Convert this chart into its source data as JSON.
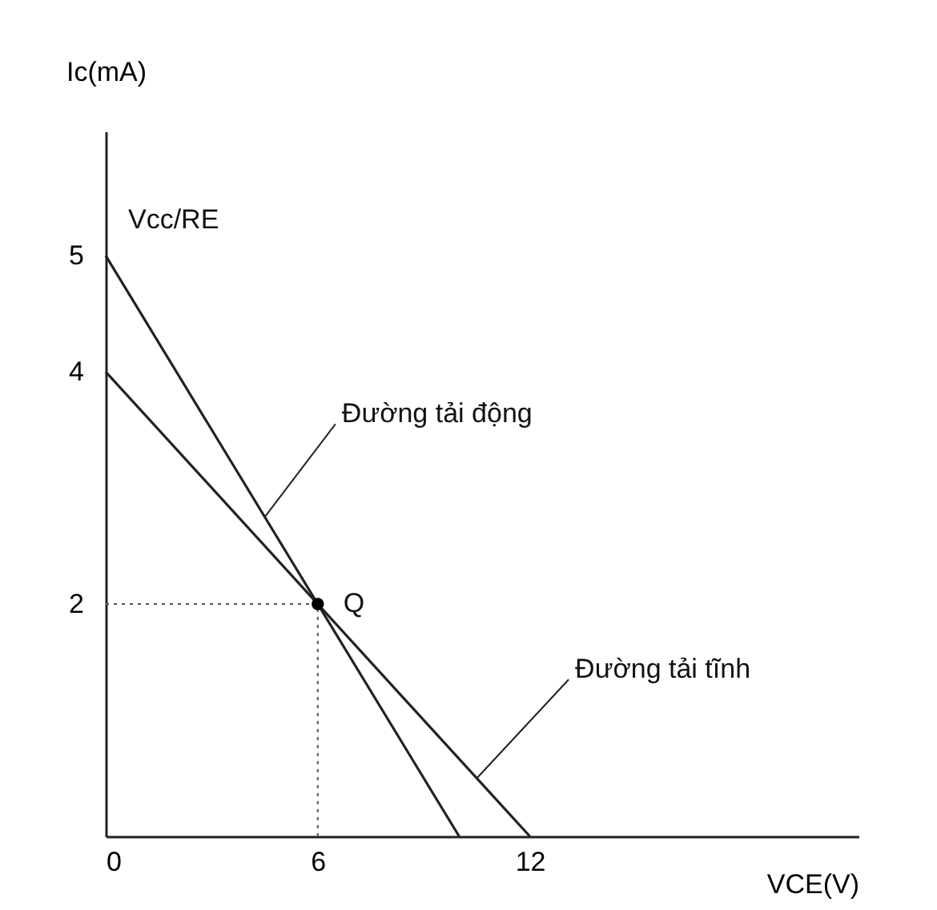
{
  "chart_data": {
    "type": "line",
    "xlabel": "VCE(V)",
    "ylabel": "Ic(mA)",
    "xlim": [
      0,
      21.3
    ],
    "ylim": [
      0,
      6.07
    ],
    "xticks": [
      0,
      6,
      12
    ],
    "yticks": [
      2,
      4,
      5
    ],
    "grid": false,
    "series": [
      {
        "x": [
          0,
          10
        ],
        "values": [
          5,
          0
        ],
        "color": "#222222",
        "line_style": "solid"
      },
      {
        "x": [
          0,
          12
        ],
        "values": [
          4,
          0
        ],
        "color": "#222222",
        "line_style": "solid"
      },
      {
        "x": [
          0,
          6
        ],
        "values": [
          2,
          2
        ],
        "color": "#555555",
        "line_style": "dotted"
      },
      {
        "x": [
          6,
          6
        ],
        "values": [
          0,
          2
        ],
        "color": "#555555",
        "line_style": "dotted"
      },
      {
        "type": "scatter",
        "x": [
          6
        ],
        "values": [
          2
        ],
        "color": "#000000",
        "marker": "circle"
      }
    ],
    "annotations": [
      {
        "text": "Vcc/RE",
        "x": 0,
        "y": 5
      },
      {
        "text": "Đường tải động",
        "x": 4.5,
        "y": 2.75
      },
      {
        "text": "Đường tải tĩnh",
        "x": 10.5,
        "y": 0.5
      },
      {
        "text": "Q",
        "x": 6,
        "y": 2
      }
    ]
  }
}
